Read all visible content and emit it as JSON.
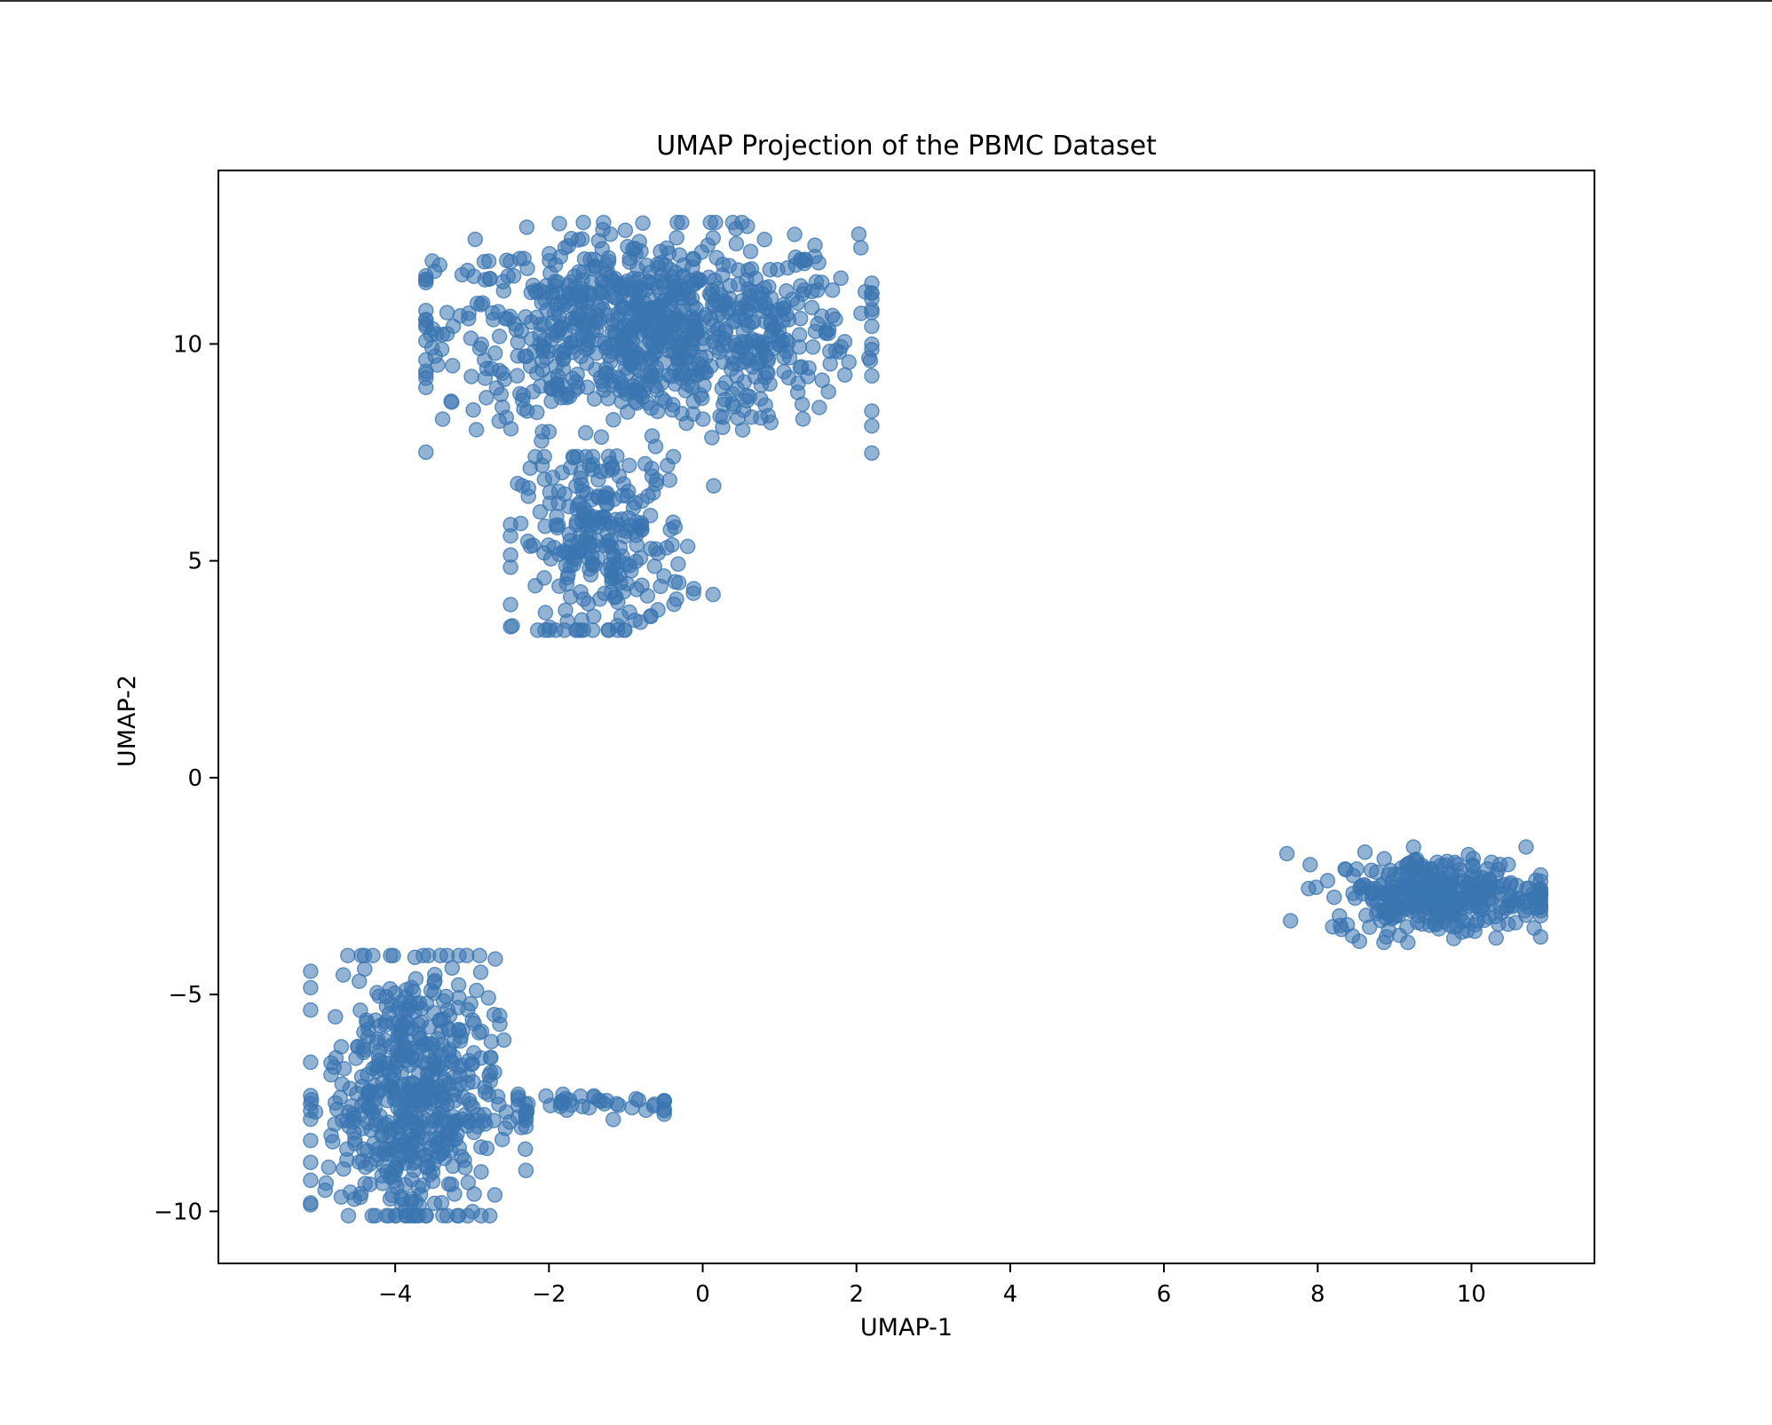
{
  "chart_data": {
    "type": "scatter",
    "title": "UMAP Projection of the PBMC Dataset",
    "xlabel": "UMAP-1",
    "ylabel": "UMAP-2",
    "xlim": [
      -6.3,
      11.6
    ],
    "ylim": [
      -11.2,
      14.0
    ],
    "xticks": [
      -4,
      -2,
      0,
      2,
      4,
      6,
      8,
      10
    ],
    "xtick_labels": [
      "−4",
      "−2",
      "0",
      "2",
      "4",
      "6",
      "8",
      "10"
    ],
    "yticks": [
      -10,
      -5,
      0,
      5,
      10
    ],
    "ytick_labels": [
      "−10",
      "−5",
      "0",
      "5",
      "10"
    ],
    "grid": false,
    "marker_color": "#3a75b0",
    "marker_alpha": 0.55,
    "clusters": [
      {
        "center": [
          -0.7,
          10.3
        ],
        "spread": [
          1.35,
          1.1
        ],
        "extent_x": [
          -3.6,
          2.2
        ],
        "extent_y": [
          7.2,
          12.8
        ],
        "count": 900
      },
      {
        "center": [
          -1.3,
          5.4
        ],
        "spread": [
          0.55,
          1.1
        ],
        "extent_x": [
          -2.5,
          0.2
        ],
        "extent_y": [
          3.4,
          7.4
        ],
        "count": 260
      },
      {
        "center": [
          -3.8,
          -7.4
        ],
        "spread": [
          0.55,
          1.6
        ],
        "extent_x": [
          -5.1,
          -2.3
        ],
        "extent_y": [
          -10.1,
          -4.1
        ],
        "count": 560
      },
      {
        "center": [
          -1.4,
          -7.5
        ],
        "spread": [
          0.8,
          0.15
        ],
        "extent_x": [
          -2.4,
          -0.5
        ],
        "extent_y": [
          -7.9,
          -7.3
        ],
        "count": 45
      },
      {
        "center": [
          9.6,
          -2.7
        ],
        "spread": [
          0.7,
          0.45
        ],
        "extent_x": [
          7.6,
          10.9
        ],
        "extent_y": [
          -3.8,
          -1.6
        ],
        "count": 340
      }
    ]
  }
}
